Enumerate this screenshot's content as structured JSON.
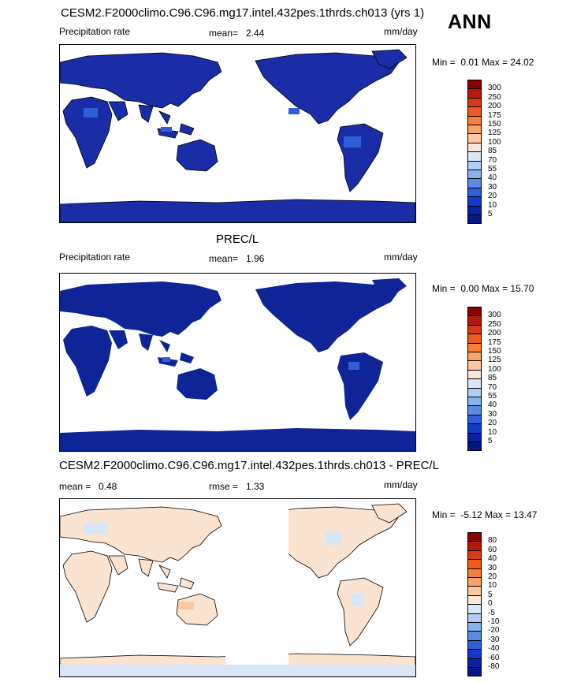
{
  "season": "ANN",
  "panels": [
    {
      "title": "CESM2.F2000climo.C96.C96.mg17.intel.432pes.1thrds.ch013 (yrs 1)",
      "left_label": "Precipitation rate",
      "stat1_label": "mean=",
      "stat1_value": "2.44",
      "stat2_label": "",
      "stat2_value": "",
      "units": "mm/day",
      "min_label": "Min =",
      "min_value": "0.01",
      "max_label": "Max =",
      "max_value": "24.02",
      "colorbar_levels": [
        "300",
        "250",
        "200",
        "175",
        "150",
        "125",
        "100",
        "85",
        "70",
        "55",
        "40",
        "30",
        "20",
        "10",
        "5"
      ],
      "colorbar_colors": [
        "#8b0000",
        "#b31a0a",
        "#d63a12",
        "#ef5a1e",
        "#f77f3c",
        "#fba366",
        "#fdc7a1",
        "#fce7d8",
        "#d8e6f7",
        "#b2cdf4",
        "#8ab2ef",
        "#5a8ae6",
        "#2f5fd9",
        "#123ac7",
        "#0a22a3",
        "#041789"
      ],
      "map_fill": "#1a2da6",
      "map_mode": "model"
    },
    {
      "title": "PREC/L",
      "left_label": "Precipitation rate",
      "stat1_label": "mean=",
      "stat1_value": "1.96",
      "stat2_label": "",
      "stat2_value": "",
      "units": "mm/day",
      "min_label": "Min =",
      "min_value": "0.00",
      "max_label": "Max =",
      "max_value": "15.70",
      "colorbar_levels": [
        "300",
        "250",
        "200",
        "175",
        "150",
        "125",
        "100",
        "85",
        "70",
        "55",
        "40",
        "30",
        "20",
        "10",
        "5"
      ],
      "colorbar_colors": [
        "#8b0000",
        "#b31a0a",
        "#d63a12",
        "#ef5a1e",
        "#f77f3c",
        "#fba366",
        "#fdc7a1",
        "#fce7d8",
        "#d8e6f7",
        "#b2cdf4",
        "#8ab2ef",
        "#5a8ae6",
        "#2f5fd9",
        "#123ac7",
        "#0a22a3",
        "#041789"
      ],
      "map_fill": "#0f2496",
      "map_mode": "obs"
    },
    {
      "title": "CESM2.F2000climo.C96.C96.mg17.intel.432pes.1thrds.ch013 - PREC/L",
      "left_label": "",
      "stat1_label": "mean =",
      "stat1_value": "0.48",
      "stat2_label": "rmse =",
      "stat2_value": "1.33",
      "units": "mm/day",
      "min_label": "Min =",
      "min_value": "-5.12",
      "max_label": "Max =",
      "max_value": "13.47",
      "colorbar_levels": [
        "80",
        "60",
        "40",
        "30",
        "20",
        "10",
        "5",
        "0",
        "-5",
        "-10",
        "-20",
        "-30",
        "-40",
        "-60",
        "-80"
      ],
      "colorbar_colors": [
        "#8b0000",
        "#b31a0a",
        "#d63a12",
        "#ef5a1e",
        "#f77f3c",
        "#fba366",
        "#fdc7a1",
        "#fce7d8",
        "#d8e6f7",
        "#b2cdf4",
        "#8ab2ef",
        "#5a8ae6",
        "#2f5fd9",
        "#123ac7",
        "#0a22a3",
        "#041789"
      ],
      "map_fill": "#fbe3d2",
      "map_mode": "diff"
    }
  ]
}
